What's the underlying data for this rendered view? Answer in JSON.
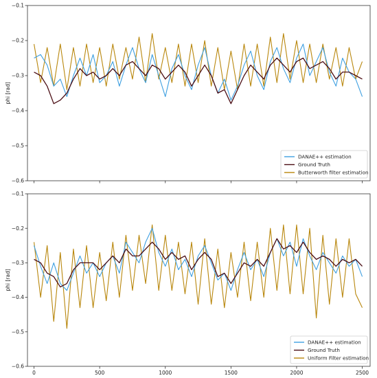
{
  "chart_data": [
    {
      "type": "line",
      "title": "",
      "xlabel": "",
      "ylabel": "phi [rad]",
      "xlim": [
        -50,
        2560
      ],
      "ylim": [
        -0.6,
        -0.1
      ],
      "xticks": [
        0,
        500,
        1000,
        1500,
        2000,
        2500
      ],
      "yticks": [
        -0.6,
        -0.5,
        -0.4,
        -0.3,
        -0.2,
        -0.1
      ],
      "ytick_labels": [
        "−0.6",
        "−0.5",
        "−0.4",
        "−0.3",
        "−0.2",
        "−0.1"
      ],
      "show_xtick_labels": false,
      "grid": false,
      "legend_position": "lower-right",
      "series": [
        {
          "name": "DANAE++ estimation",
          "color": "#3d9fe0",
          "x": [
            0,
            50,
            100,
            150,
            200,
            250,
            300,
            350,
            400,
            450,
            500,
            550,
            600,
            650,
            700,
            750,
            800,
            850,
            900,
            950,
            1000,
            1050,
            1100,
            1150,
            1200,
            1250,
            1300,
            1350,
            1400,
            1450,
            1500,
            1550,
            1600,
            1650,
            1700,
            1750,
            1800,
            1850,
            1900,
            1950,
            2000,
            2050,
            2100,
            2150,
            2200,
            2250,
            2300,
            2350,
            2400,
            2450,
            2500
          ],
          "values": [
            -0.25,
            -0.24,
            -0.27,
            -0.33,
            -0.31,
            -0.36,
            -0.3,
            -0.25,
            -0.3,
            -0.24,
            -0.32,
            -0.3,
            -0.26,
            -0.33,
            -0.27,
            -0.22,
            -0.28,
            -0.32,
            -0.24,
            -0.3,
            -0.36,
            -0.28,
            -0.24,
            -0.3,
            -0.34,
            -0.27,
            -0.22,
            -0.3,
            -0.35,
            -0.31,
            -0.37,
            -0.33,
            -0.27,
            -0.23,
            -0.3,
            -0.34,
            -0.26,
            -0.22,
            -0.28,
            -0.32,
            -0.25,
            -0.21,
            -0.3,
            -0.26,
            -0.22,
            -0.29,
            -0.33,
            -0.25,
            -0.29,
            -0.31,
            -0.36
          ]
        },
        {
          "name": "Ground Truth",
          "color": "#4a0d14",
          "x": [
            0,
            50,
            100,
            150,
            200,
            250,
            300,
            350,
            400,
            450,
            500,
            550,
            600,
            650,
            700,
            750,
            800,
            850,
            900,
            950,
            1000,
            1050,
            1100,
            1150,
            1200,
            1250,
            1300,
            1350,
            1400,
            1450,
            1500,
            1550,
            1600,
            1650,
            1700,
            1750,
            1800,
            1850,
            1900,
            1950,
            2000,
            2050,
            2100,
            2150,
            2200,
            2250,
            2300,
            2350,
            2400,
            2450,
            2500
          ],
          "values": [
            -0.29,
            -0.3,
            -0.33,
            -0.38,
            -0.37,
            -0.35,
            -0.31,
            -0.28,
            -0.3,
            -0.29,
            -0.31,
            -0.3,
            -0.28,
            -0.3,
            -0.27,
            -0.26,
            -0.28,
            -0.3,
            -0.27,
            -0.28,
            -0.31,
            -0.29,
            -0.27,
            -0.29,
            -0.33,
            -0.3,
            -0.27,
            -0.3,
            -0.35,
            -0.34,
            -0.38,
            -0.34,
            -0.3,
            -0.27,
            -0.29,
            -0.31,
            -0.27,
            -0.25,
            -0.27,
            -0.29,
            -0.26,
            -0.25,
            -0.28,
            -0.27,
            -0.26,
            -0.28,
            -0.31,
            -0.29,
            -0.29,
            -0.3,
            -0.31
          ]
        },
        {
          "name": "Butterworth filter estimation",
          "color": "#b8860b",
          "x": [
            0,
            50,
            100,
            150,
            200,
            250,
            300,
            350,
            400,
            450,
            500,
            550,
            600,
            650,
            700,
            750,
            800,
            850,
            900,
            950,
            1000,
            1050,
            1100,
            1150,
            1200,
            1250,
            1300,
            1350,
            1400,
            1450,
            1500,
            1550,
            1600,
            1650,
            1700,
            1750,
            1800,
            1850,
            1900,
            1950,
            2000,
            2050,
            2100,
            2150,
            2200,
            2250,
            2300,
            2350,
            2400,
            2450,
            2500
          ],
          "values": [
            -0.21,
            -0.32,
            -0.22,
            -0.33,
            -0.21,
            -0.34,
            -0.22,
            -0.33,
            -0.21,
            -0.32,
            -0.22,
            -0.33,
            -0.21,
            -0.31,
            -0.22,
            -0.31,
            -0.19,
            -0.32,
            -0.18,
            -0.31,
            -0.22,
            -0.32,
            -0.21,
            -0.33,
            -0.21,
            -0.32,
            -0.2,
            -0.33,
            -0.22,
            -0.34,
            -0.23,
            -0.34,
            -0.21,
            -0.33,
            -0.21,
            -0.33,
            -0.19,
            -0.32,
            -0.18,
            -0.31,
            -0.2,
            -0.32,
            -0.21,
            -0.32,
            -0.21,
            -0.31,
            -0.22,
            -0.33,
            -0.22,
            -0.31,
            -0.26
          ]
        }
      ]
    },
    {
      "type": "line",
      "title": "",
      "xlabel": "",
      "ylabel": "phi [rad]",
      "xlim": [
        -50,
        2560
      ],
      "ylim": [
        -0.6,
        -0.1
      ],
      "xticks": [
        0,
        500,
        1000,
        1500,
        2000,
        2500
      ],
      "yticks": [
        -0.6,
        -0.5,
        -0.4,
        -0.3,
        -0.2,
        -0.1
      ],
      "ytick_labels": [
        "−0.6",
        "−0.5",
        "−0.4",
        "−0.3",
        "−0.2",
        "−0.1"
      ],
      "show_xtick_labels": true,
      "grid": false,
      "legend_position": "lower-right",
      "series": [
        {
          "name": "DANAE++ estimation",
          "color": "#3d9fe0",
          "x": [
            0,
            50,
            100,
            150,
            200,
            250,
            300,
            350,
            400,
            450,
            500,
            550,
            600,
            650,
            700,
            750,
            800,
            850,
            900,
            950,
            1000,
            1050,
            1100,
            1150,
            1200,
            1250,
            1300,
            1350,
            1400,
            1450,
            1500,
            1550,
            1600,
            1650,
            1700,
            1750,
            1800,
            1850,
            1900,
            1950,
            2000,
            2050,
            2100,
            2150,
            2200,
            2250,
            2300,
            2350,
            2400,
            2450,
            2500
          ],
          "values": [
            -0.25,
            -0.31,
            -0.36,
            -0.3,
            -0.36,
            -0.38,
            -0.33,
            -0.28,
            -0.33,
            -0.3,
            -0.34,
            -0.3,
            -0.28,
            -0.33,
            -0.24,
            -0.27,
            -0.3,
            -0.24,
            -0.2,
            -0.27,
            -0.31,
            -0.26,
            -0.32,
            -0.29,
            -0.34,
            -0.28,
            -0.25,
            -0.3,
            -0.35,
            -0.33,
            -0.38,
            -0.32,
            -0.27,
            -0.32,
            -0.29,
            -0.34,
            -0.27,
            -0.23,
            -0.28,
            -0.24,
            -0.31,
            -0.23,
            -0.28,
            -0.32,
            -0.27,
            -0.3,
            -0.33,
            -0.28,
            -0.31,
            -0.29,
            -0.34
          ]
        },
        {
          "name": "Ground Truth",
          "color": "#4a0d14",
          "x": [
            0,
            50,
            100,
            150,
            200,
            250,
            300,
            350,
            400,
            450,
            500,
            550,
            600,
            650,
            700,
            750,
            800,
            850,
            900,
            950,
            1000,
            1050,
            1100,
            1150,
            1200,
            1250,
            1300,
            1350,
            1400,
            1450,
            1500,
            1550,
            1600,
            1650,
            1700,
            1750,
            1800,
            1850,
            1900,
            1950,
            2000,
            2050,
            2100,
            2150,
            2200,
            2250,
            2300,
            2350,
            2400,
            2450,
            2500
          ],
          "values": [
            -0.29,
            -0.3,
            -0.33,
            -0.34,
            -0.37,
            -0.36,
            -0.32,
            -0.3,
            -0.3,
            -0.3,
            -0.32,
            -0.3,
            -0.28,
            -0.3,
            -0.26,
            -0.28,
            -0.28,
            -0.26,
            -0.24,
            -0.26,
            -0.29,
            -0.27,
            -0.29,
            -0.28,
            -0.32,
            -0.29,
            -0.27,
            -0.29,
            -0.34,
            -0.33,
            -0.36,
            -0.33,
            -0.3,
            -0.31,
            -0.29,
            -0.31,
            -0.27,
            -0.23,
            -0.26,
            -0.25,
            -0.27,
            -0.24,
            -0.27,
            -0.29,
            -0.28,
            -0.29,
            -0.31,
            -0.29,
            -0.3,
            -0.29,
            -0.31
          ]
        },
        {
          "name": "Uniform Filter estimation",
          "color": "#b8860b",
          "x": [
            0,
            50,
            100,
            150,
            200,
            250,
            300,
            350,
            400,
            450,
            500,
            550,
            600,
            650,
            700,
            750,
            800,
            850,
            900,
            950,
            1000,
            1050,
            1100,
            1150,
            1200,
            1250,
            1300,
            1350,
            1400,
            1450,
            1500,
            1550,
            1600,
            1650,
            1700,
            1750,
            1800,
            1850,
            1900,
            1950,
            2000,
            2050,
            2100,
            2150,
            2200,
            2250,
            2300,
            2350,
            2400,
            2450,
            2500
          ],
          "values": [
            -0.24,
            -0.4,
            -0.25,
            -0.47,
            -0.27,
            -0.49,
            -0.26,
            -0.43,
            -0.25,
            -0.43,
            -0.27,
            -0.41,
            -0.24,
            -0.4,
            -0.22,
            -0.38,
            -0.22,
            -0.36,
            -0.19,
            -0.38,
            -0.22,
            -0.38,
            -0.24,
            -0.39,
            -0.24,
            -0.42,
            -0.23,
            -0.42,
            -0.26,
            -0.43,
            -0.27,
            -0.4,
            -0.24,
            -0.41,
            -0.24,
            -0.4,
            -0.2,
            -0.38,
            -0.19,
            -0.39,
            -0.19,
            -0.39,
            -0.2,
            -0.46,
            -0.22,
            -0.42,
            -0.23,
            -0.4,
            -0.23,
            -0.39,
            -0.43
          ]
        }
      ]
    }
  ]
}
